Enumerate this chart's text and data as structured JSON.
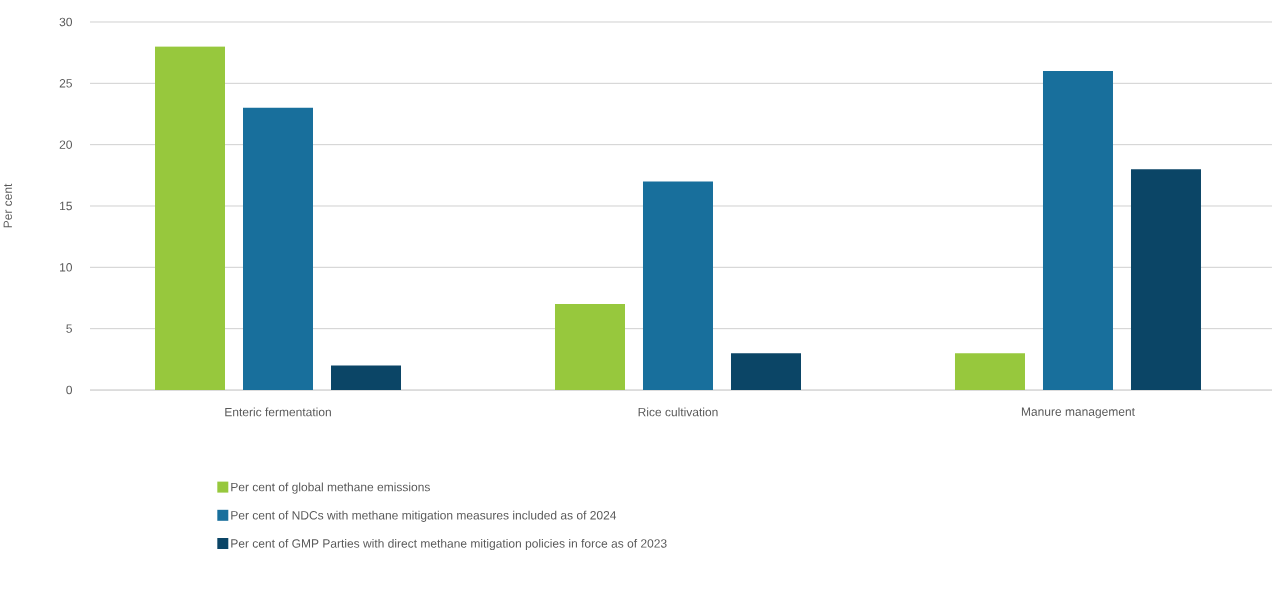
{
  "chart_data": {
    "type": "bar",
    "ylabel": "Per cent",
    "categories": [
      "Enteric fermentation",
      "Rice cultivation",
      "Manure management"
    ],
    "series": [
      {
        "name": "Per cent of global methane emissions",
        "color": "#97c83d",
        "values": [
          28,
          7,
          3
        ]
      },
      {
        "name": "Per cent of NDCs with methane mitigation measures included as of 2024",
        "color": "#186f9c",
        "values": [
          23,
          17,
          26
        ]
      },
      {
        "name": "Per cent of GMP Parties with direct methane mitigation policies in force as of 2023",
        "color": "#0b4566",
        "values": [
          2,
          3,
          18
        ]
      }
    ],
    "ylim": [
      0,
      30
    ],
    "yticks": [
      0,
      5,
      10,
      15,
      20,
      25,
      30
    ],
    "grid": "y",
    "legend": "bottom"
  }
}
